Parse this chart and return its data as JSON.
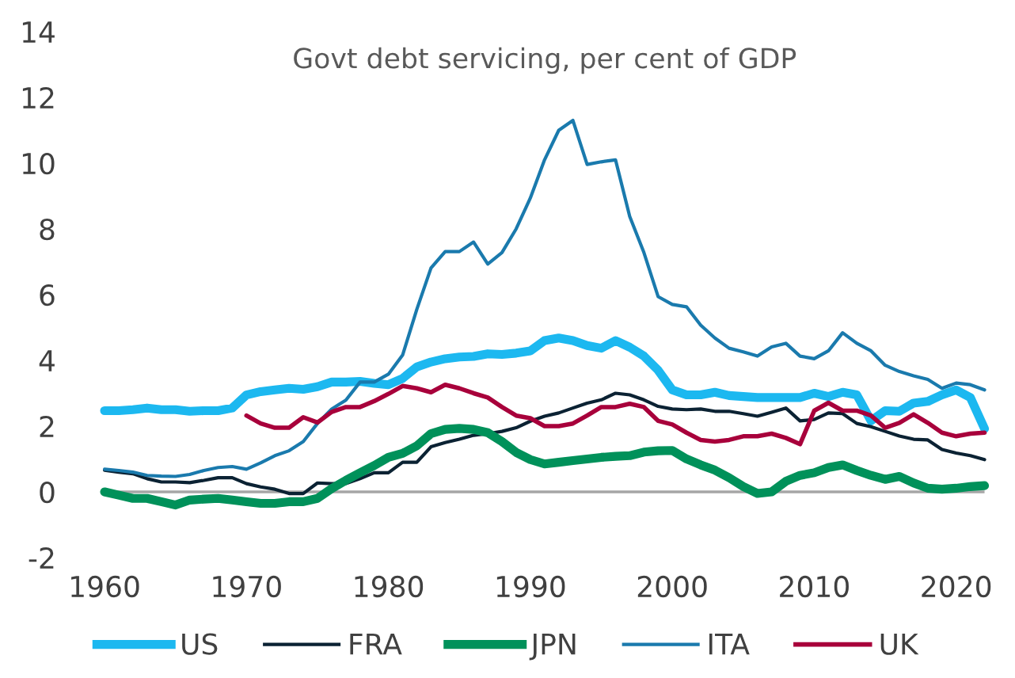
{
  "chart_data": {
    "type": "line",
    "title": "Govt debt servicing, per cent of GDP",
    "x": [
      1960,
      1961,
      1962,
      1963,
      1964,
      1965,
      1966,
      1967,
      1968,
      1969,
      1970,
      1971,
      1972,
      1973,
      1974,
      1975,
      1976,
      1977,
      1978,
      1979,
      1980,
      1981,
      1982,
      1983,
      1984,
      1985,
      1986,
      1987,
      1988,
      1989,
      1990,
      1991,
      1992,
      1993,
      1994,
      1995,
      1996,
      1997,
      1998,
      1999,
      2000,
      2001,
      2002,
      2003,
      2004,
      2005,
      2006,
      2007,
      2008,
      2009,
      2010,
      2011,
      2012,
      2013,
      2014,
      2015,
      2016,
      2017,
      2018,
      2019,
      2020,
      2021,
      2022
    ],
    "series": [
      {
        "name": "US",
        "color": "#1cb8f0",
        "values": [
          2.47,
          2.47,
          2.5,
          2.55,
          2.5,
          2.5,
          2.45,
          2.47,
          2.47,
          2.55,
          2.95,
          3.05,
          3.1,
          3.15,
          3.12,
          3.2,
          3.34,
          3.34,
          3.36,
          3.3,
          3.26,
          3.45,
          3.8,
          3.95,
          4.05,
          4.1,
          4.12,
          4.2,
          4.18,
          4.22,
          4.29,
          4.6,
          4.68,
          4.6,
          4.45,
          4.37,
          4.6,
          4.4,
          4.13,
          3.7,
          3.1,
          2.95,
          2.95,
          3.03,
          2.93,
          2.9,
          2.87,
          2.87,
          2.87,
          2.87,
          3.0,
          2.9,
          3.03,
          2.95,
          2.16,
          2.47,
          2.45,
          2.7,
          2.75,
          2.95,
          3.1,
          2.87,
          1.92
        ]
      },
      {
        "name": "FRA",
        "color": "#0b2233",
        "values": [
          0.66,
          0.6,
          0.55,
          0.4,
          0.3,
          0.3,
          0.28,
          0.35,
          0.43,
          0.43,
          0.25,
          0.15,
          0.08,
          -0.05,
          -0.05,
          0.27,
          0.25,
          0.25,
          0.4,
          0.58,
          0.58,
          0.9,
          0.9,
          1.37,
          1.5,
          1.6,
          1.72,
          1.77,
          1.84,
          1.95,
          2.15,
          2.3,
          2.4,
          2.55,
          2.7,
          2.8,
          3.0,
          2.95,
          2.8,
          2.6,
          2.52,
          2.5,
          2.52,
          2.45,
          2.45,
          2.38,
          2.3,
          2.42,
          2.55,
          2.16,
          2.2,
          2.4,
          2.38,
          2.08,
          1.98,
          1.84,
          1.7,
          1.6,
          1.58,
          1.29,
          1.18,
          1.1,
          0.98
        ]
      },
      {
        "name": "JPN",
        "color": "#00915a",
        "values": [
          0,
          -0.1,
          -0.2,
          -0.2,
          -0.3,
          -0.4,
          -0.25,
          -0.22,
          -0.2,
          -0.25,
          -0.3,
          -0.35,
          -0.35,
          -0.3,
          -0.3,
          -0.2,
          0.1,
          0.35,
          0.58,
          0.8,
          1.05,
          1.17,
          1.4,
          1.77,
          1.9,
          1.93,
          1.9,
          1.8,
          1.53,
          1.2,
          0.98,
          0.85,
          0.9,
          0.95,
          1.0,
          1.05,
          1.08,
          1.1,
          1.21,
          1.25,
          1.26,
          1.0,
          0.82,
          0.66,
          0.43,
          0.16,
          -0.05,
          0,
          0.32,
          0.5,
          0.58,
          0.74,
          0.82,
          0.65,
          0.5,
          0.38,
          0.47,
          0.27,
          0.11,
          0.08,
          0.11,
          0.16,
          0.19
        ]
      },
      {
        "name": "ITA",
        "color": "#1a7aad",
        "values": [
          0.69,
          0.65,
          0.6,
          0.5,
          0.48,
          0.47,
          0.53,
          0.65,
          0.74,
          0.77,
          0.69,
          0.88,
          1.1,
          1.25,
          1.53,
          2.08,
          2.52,
          2.79,
          3.34,
          3.34,
          3.58,
          4.16,
          5.55,
          6.81,
          7.31,
          7.31,
          7.6,
          6.93,
          7.28,
          8.0,
          8.94,
          10.1,
          11.0,
          11.3,
          9.96,
          10.04,
          10.1,
          8.38,
          7.28,
          5.94,
          5.7,
          5.63,
          5.07,
          4.68,
          4.37,
          4.26,
          4.13,
          4.41,
          4.52,
          4.13,
          4.05,
          4.29,
          4.84,
          4.52,
          4.29,
          3.85,
          3.66,
          3.53,
          3.42,
          3.15,
          3.31,
          3.26,
          3.1
        ]
      },
      {
        "name": "UK",
        "color": "#a8003b",
        "values": [
          null,
          null,
          null,
          null,
          null,
          null,
          null,
          null,
          null,
          null,
          2.32,
          2.08,
          1.95,
          1.95,
          2.27,
          2.11,
          2.43,
          2.58,
          2.58,
          2.76,
          2.98,
          3.22,
          3.15,
          3.03,
          3.26,
          3.15,
          3.0,
          2.87,
          2.58,
          2.32,
          2.24,
          2.0,
          2.0,
          2.08,
          2.32,
          2.58,
          2.58,
          2.68,
          2.58,
          2.16,
          2.05,
          1.8,
          1.58,
          1.53,
          1.58,
          1.69,
          1.69,
          1.77,
          1.64,
          1.45,
          2.47,
          2.71,
          2.47,
          2.47,
          2.32,
          1.95,
          2.1,
          2.36,
          2.1,
          1.8,
          1.69,
          1.77,
          1.8
        ]
      }
    ],
    "xlim": [
      1960,
      2022
    ],
    "ylim": [
      -2,
      14
    ],
    "xticks": [
      1960,
      1970,
      1980,
      1990,
      2000,
      2010,
      2020
    ],
    "yticks": [
      -2,
      0,
      2,
      4,
      6,
      8,
      10,
      12,
      14
    ],
    "ref_lines": [
      {
        "axis": "y",
        "value": 0,
        "color": "#a6a6a6"
      }
    ],
    "grid": false,
    "legend": "bottom",
    "marker": "none",
    "line_style": "solid"
  }
}
